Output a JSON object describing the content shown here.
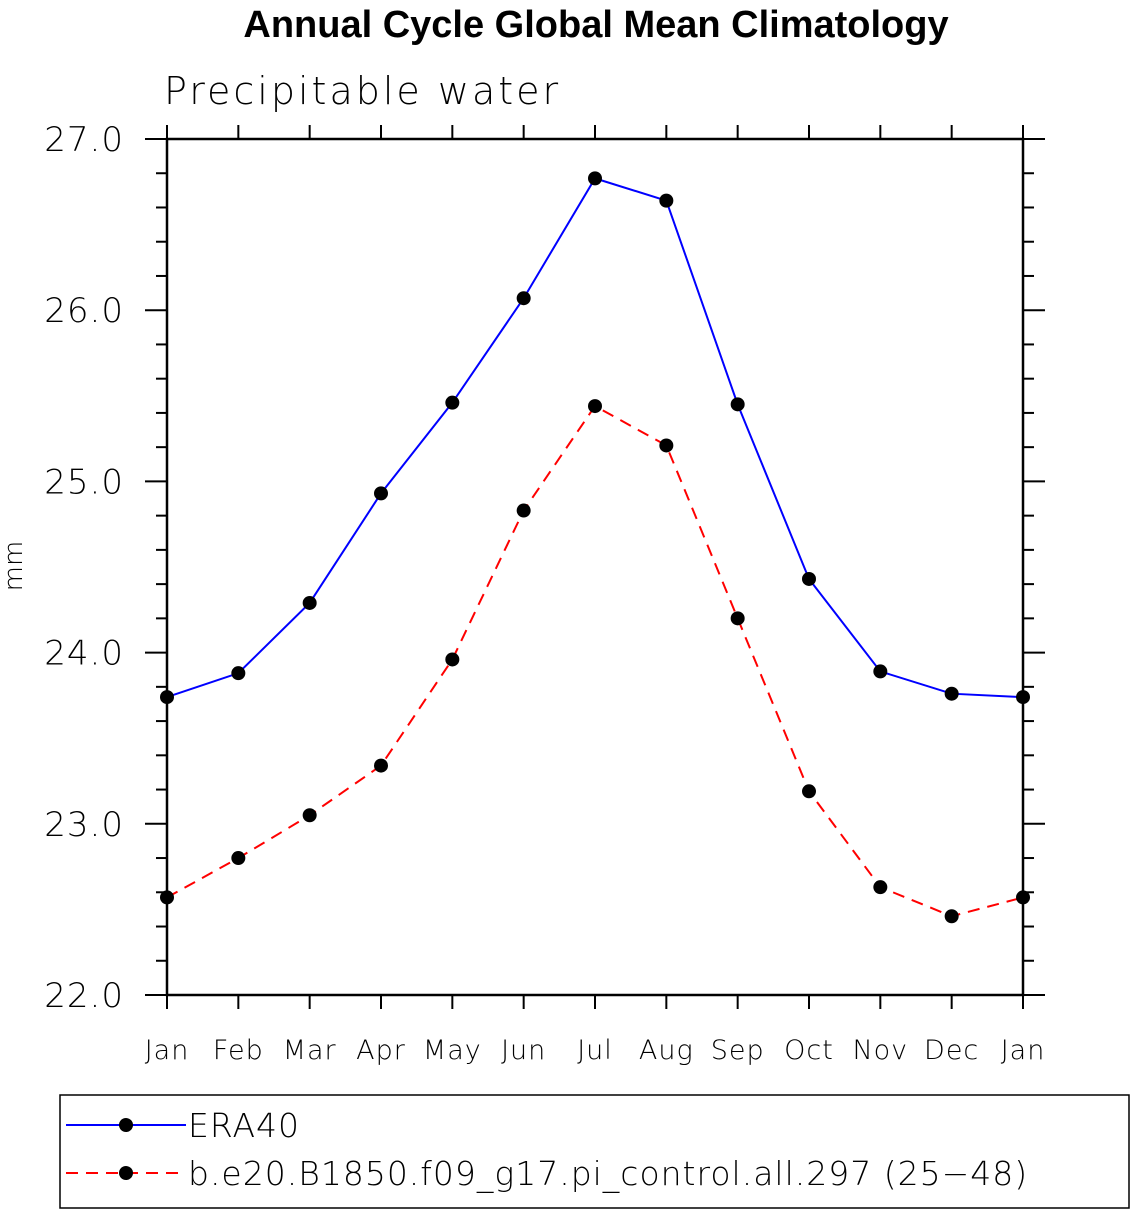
{
  "chart_data": {
    "type": "line",
    "title": "Annual Cycle Global Mean Climatology",
    "subtitle": "Precipitable water",
    "xlabel": "",
    "ylabel": "mm",
    "categories": [
      "Jan",
      "Feb",
      "Mar",
      "Apr",
      "May",
      "Jun",
      "Jul",
      "Aug",
      "Sep",
      "Oct",
      "Nov",
      "Dec",
      "Jan"
    ],
    "ylim": [
      22.0,
      27.0
    ],
    "yticks": [
      "22.0",
      "23.0",
      "24.0",
      "25.0",
      "26.0",
      "27.0"
    ],
    "grid": false,
    "legend_position": "bottom",
    "series": [
      {
        "name": "ERA40",
        "color": "#0000ff",
        "line_style": "solid",
        "marker": "filled-circle",
        "values": [
          23.74,
          23.88,
          24.29,
          24.93,
          25.46,
          26.07,
          26.77,
          26.64,
          25.45,
          24.43,
          23.89,
          23.76,
          23.74
        ]
      },
      {
        "name": "b.e20.B1850.f09_g17.pi_control.all.297 (25−48)",
        "color": "#ff0000",
        "line_style": "dashed",
        "marker": "filled-circle",
        "values": [
          22.57,
          22.8,
          23.05,
          23.34,
          23.96,
          24.83,
          25.44,
          25.21,
          24.2,
          23.19,
          22.63,
          22.46,
          22.57
        ]
      }
    ]
  }
}
